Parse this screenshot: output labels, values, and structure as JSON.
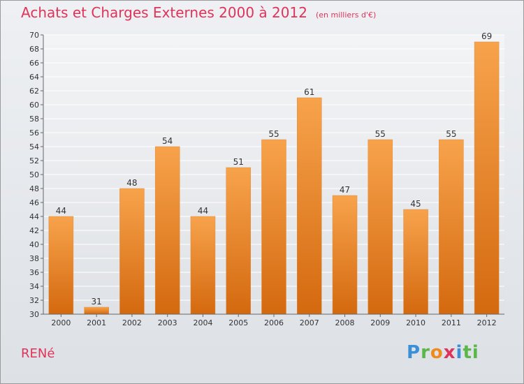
{
  "title": "Achats et Charges Externes 2000 à 2012",
  "unit": "(en milliers d'€)",
  "commune": "RENé",
  "logo": [
    "P",
    "r",
    "o",
    "x",
    "i",
    "ti"
  ],
  "colors": {
    "bar_top": "#f7a34c",
    "bar_bottom": "#d4690f",
    "title": "#e0335a"
  },
  "chart_data": {
    "type": "bar",
    "categories": [
      "2000",
      "2001",
      "2002",
      "2003",
      "2004",
      "2005",
      "2006",
      "2007",
      "2008",
      "2009",
      "2010",
      "2011",
      "2012"
    ],
    "values": [
      44,
      31,
      48,
      54,
      44,
      51,
      55,
      61,
      47,
      55,
      45,
      55,
      69
    ],
    "ylim": [
      30,
      70
    ],
    "yticks": [
      30,
      32,
      34,
      36,
      38,
      40,
      42,
      44,
      46,
      48,
      50,
      52,
      54,
      56,
      58,
      60,
      62,
      64,
      66,
      68,
      70
    ],
    "grid": true
  }
}
